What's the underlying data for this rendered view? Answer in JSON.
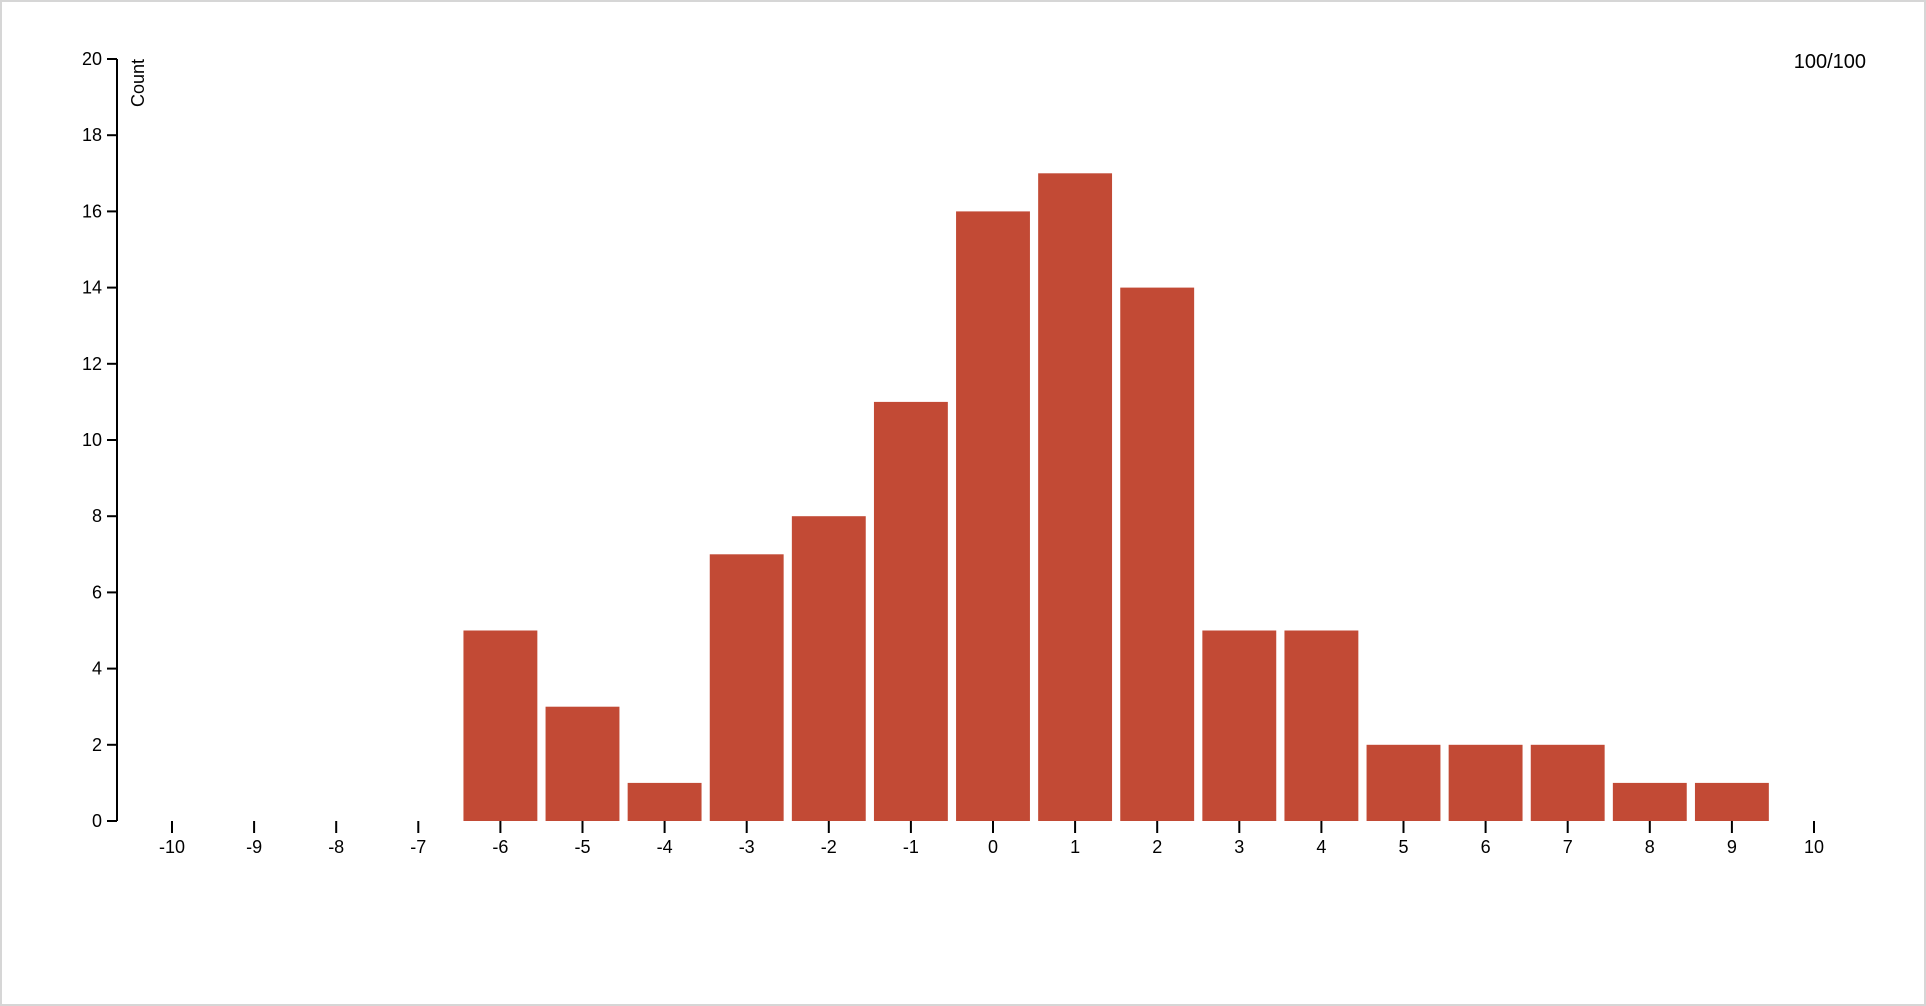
{
  "counter_text": "100/100",
  "chart_data": {
    "type": "bar",
    "title": "",
    "xlabel": "",
    "ylabel": "Count",
    "ylim": [
      0,
      20
    ],
    "xlim": [
      -10,
      10
    ],
    "grid": false,
    "bar_color": "#c24a35",
    "y_ticks": [
      "0",
      "2",
      "4",
      "6",
      "8",
      "10",
      "12",
      "14",
      "16",
      "18",
      "20"
    ],
    "x_ticks": [
      "-10",
      "-9",
      "-8",
      "-7",
      "-6",
      "-5",
      "-4",
      "-3",
      "-2",
      "-1",
      "0",
      "1",
      "2",
      "3",
      "4",
      "5",
      "6",
      "7",
      "8",
      "9",
      "10"
    ],
    "categories": [
      "-6",
      "-5",
      "-4",
      "-3",
      "-2",
      "-1",
      "0",
      "1",
      "2",
      "3",
      "4",
      "5",
      "6",
      "7",
      "8",
      "9"
    ],
    "values": [
      5,
      3,
      1,
      7,
      8,
      11,
      16,
      17,
      14,
      5,
      5,
      2,
      2,
      2,
      1,
      1
    ]
  }
}
